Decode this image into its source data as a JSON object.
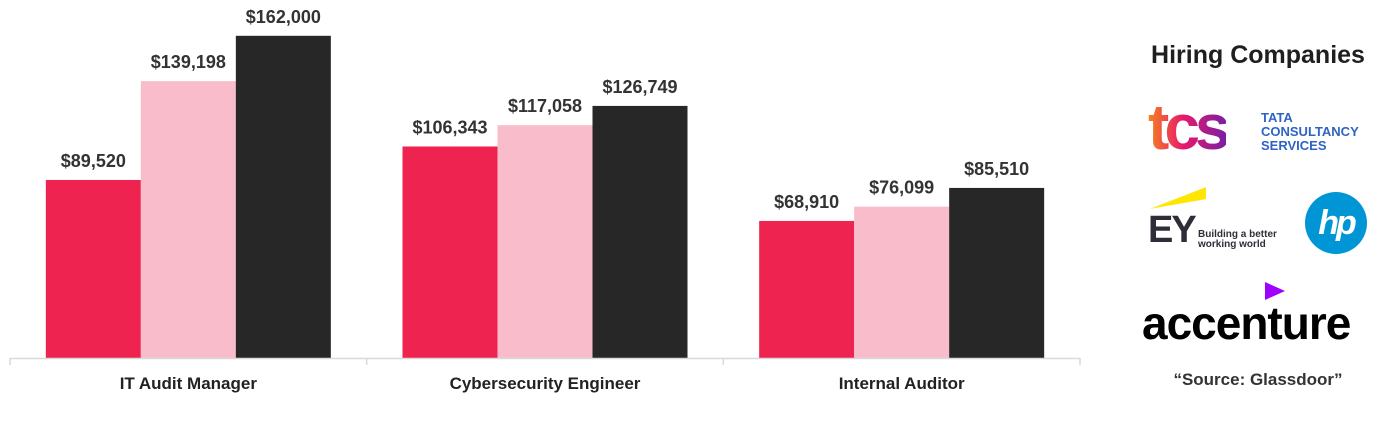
{
  "chart_data": {
    "type": "bar",
    "categories": [
      "IT Audit Manager",
      "Cybersecurity Engineer",
      "Internal Auditor"
    ],
    "series": [
      {
        "values": [
          89520,
          106343,
          68910
        ],
        "labels": [
          "$89,520",
          "$106,343",
          "$68,910"
        ],
        "color": "#ef2350"
      },
      {
        "values": [
          139198,
          117058,
          76099
        ],
        "labels": [
          "$139,198",
          "$117,058",
          "$76,099"
        ],
        "color": "#f9bccb"
      },
      {
        "values": [
          162000,
          126749,
          85510
        ],
        "labels": [
          "$162,000",
          "$126,749",
          "$85,510"
        ],
        "color": "#272727"
      }
    ],
    "ylim": [
      0,
      180000
    ],
    "grid": false,
    "axis_color": "#d9d9d9"
  },
  "sidebar": {
    "title": "Hiring Companies",
    "logos": {
      "tcs": {
        "mark": "tcs",
        "line1": "TATA",
        "line2": "CONSULTANCY",
        "line3": "SERVICES"
      },
      "ey": {
        "mark": "EY",
        "tagline1": "Building a better",
        "tagline2": "working world"
      },
      "hp": {
        "mark": "hp"
      },
      "accenture": {
        "mark": "accenture"
      }
    },
    "source": "“Source: Glassdoor”"
  }
}
